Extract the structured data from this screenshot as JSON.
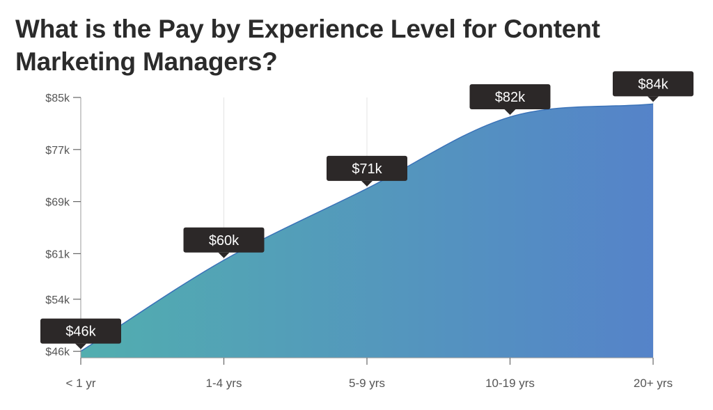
{
  "chart_data": {
    "type": "area",
    "title": "What is the Pay by Experience Level for Content Marketing Managers?",
    "xlabel": "",
    "ylabel": "",
    "categories": [
      "< 1 yr",
      "1-4 yrs",
      "5-9 yrs",
      "10-19 yrs",
      "20+ yrs"
    ],
    "values": [
      46,
      60,
      71,
      82,
      84
    ],
    "data_labels": [
      "$46k",
      "$60k",
      "$71k",
      "$82k",
      "$84k"
    ],
    "y_ticks": [
      46,
      54,
      61,
      69,
      77,
      85
    ],
    "y_tick_labels": [
      "$46k",
      "$54k",
      "$61k",
      "$69k",
      "$77k",
      "$85k"
    ],
    "ylim": [
      45,
      85
    ],
    "grid": "vertical",
    "legend": "none",
    "colors": {
      "gradient_start": "#52aeaf",
      "gradient_end": "#5583c9",
      "line": "#3a72b8",
      "label_bg": "#2c2828",
      "grid": "#e3e3e3",
      "axis": "#9a9a9a"
    }
  }
}
